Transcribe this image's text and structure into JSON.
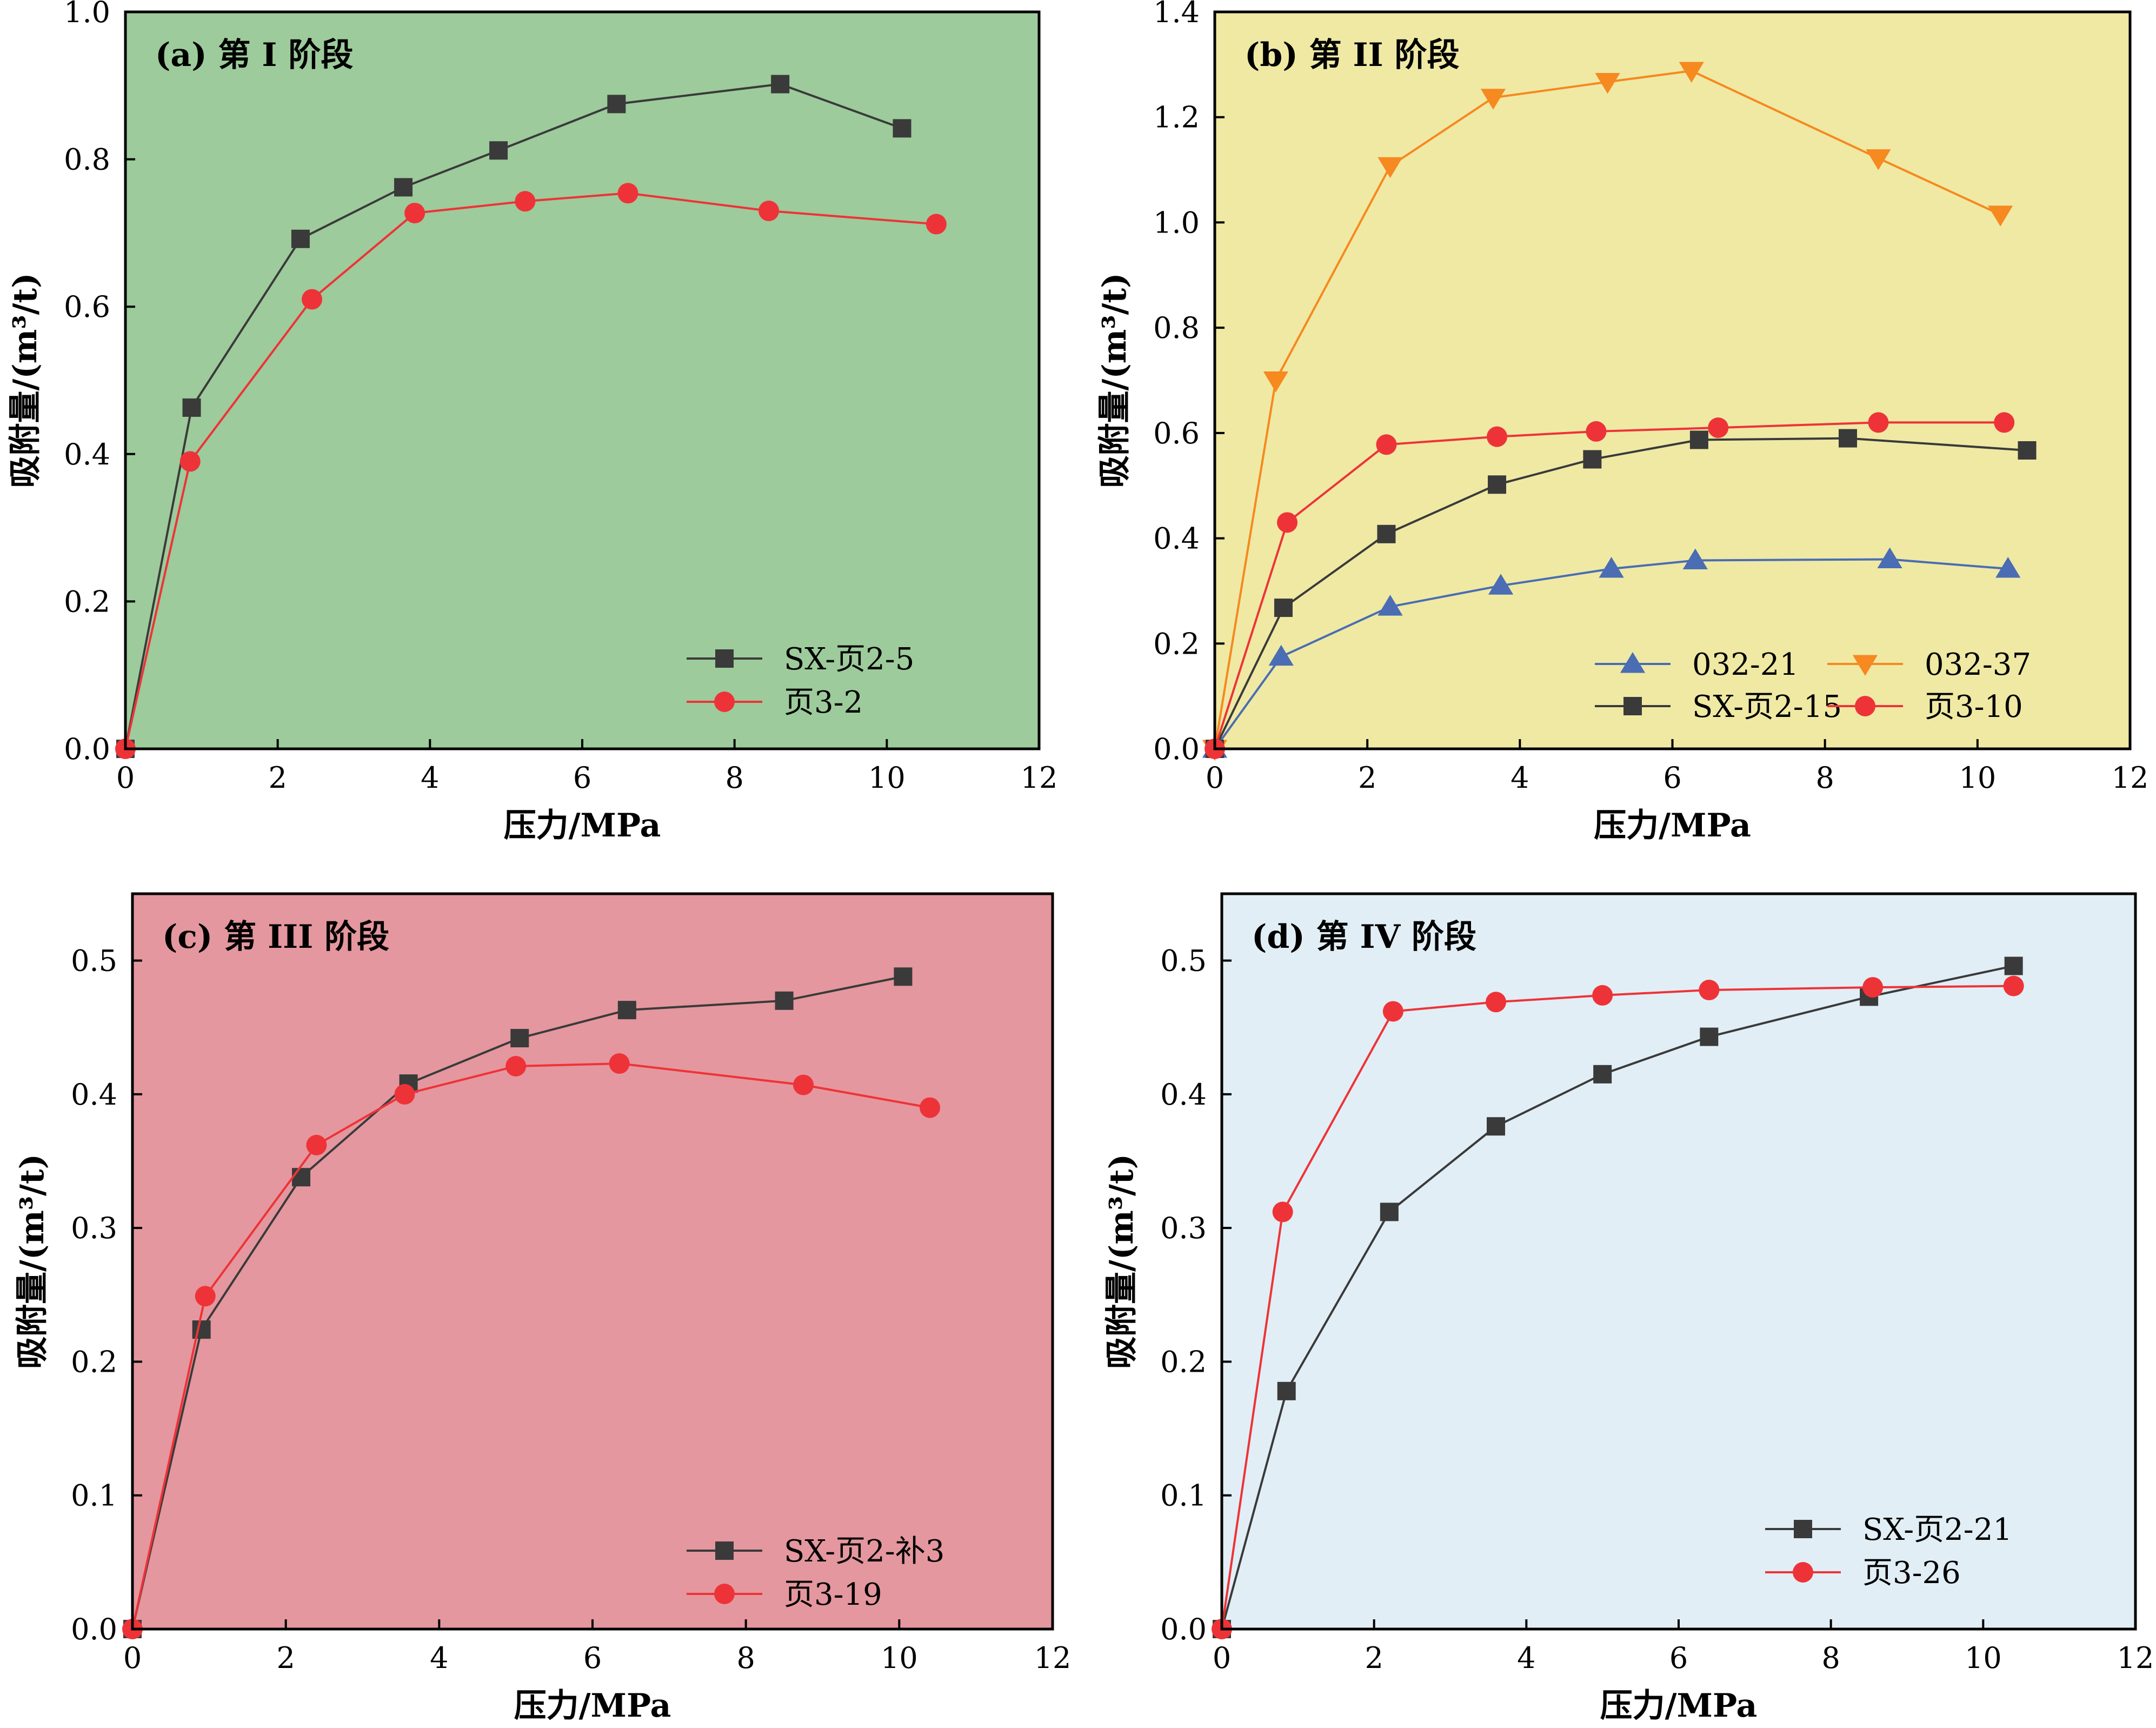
{
  "chart_data": [
    {
      "type": "line",
      "title": "(a) 第 I 阶段",
      "xlabel": "压力/MPa",
      "ylabel": "吸附量/(m³/t)",
      "xlim": [
        0,
        12
      ],
      "ylim": [
        0,
        1.0
      ],
      "xticks": [
        "0",
        "2",
        "4",
        "6",
        "8",
        "10",
        "12"
      ],
      "yticks": [
        "0.0",
        "0.2",
        "0.4",
        "0.6",
        "0.8",
        "1.0"
      ],
      "background": "#9dcb9b",
      "legend_position": "lower-right",
      "series": [
        {
          "name": "SX-页2-5",
          "marker": "square",
          "color": "#3a3a3a",
          "x": [
            0,
            0.87,
            2.3,
            3.65,
            4.9,
            6.45,
            8.6,
            10.2
          ],
          "y": [
            0,
            0.463,
            0.692,
            0.762,
            0.812,
            0.875,
            0.902,
            0.842
          ]
        },
        {
          "name": "页3-2",
          "marker": "circle",
          "color": "#ee3338",
          "x": [
            0,
            0.85,
            2.45,
            3.8,
            5.25,
            6.6,
            8.45,
            10.65
          ],
          "y": [
            0,
            0.39,
            0.61,
            0.727,
            0.743,
            0.754,
            0.73,
            0.712
          ]
        }
      ]
    },
    {
      "type": "line",
      "title": "(b) 第 II 阶段",
      "xlabel": "压力/MPa",
      "ylabel": "吸附量/(m³/t)",
      "xlim": [
        0,
        12
      ],
      "ylim": [
        0,
        1.4
      ],
      "xticks": [
        "0",
        "2",
        "4",
        "6",
        "8",
        "10",
        "12"
      ],
      "yticks": [
        "0.0",
        "0.2",
        "0.4",
        "0.6",
        "0.8",
        "1.0",
        "1.2",
        "1.4"
      ],
      "background": "#efe9a4",
      "legend_position": "lower-right",
      "series": [
        {
          "name": "032-21",
          "marker": "triangle-up",
          "color": "#4a6db3",
          "x": [
            0,
            0.87,
            2.3,
            3.75,
            5.2,
            6.3,
            8.85,
            10.4
          ],
          "y": [
            0,
            0.175,
            0.27,
            0.31,
            0.342,
            0.358,
            0.36,
            0.342
          ]
        },
        {
          "name": "032-37",
          "marker": "triangle-down",
          "color": "#f6891f",
          "x": [
            0,
            0.8,
            2.3,
            3.65,
            5.15,
            6.25,
            8.7,
            10.3
          ],
          "y": [
            0,
            0.7,
            1.107,
            1.237,
            1.267,
            1.288,
            1.122,
            1.015
          ]
        },
        {
          "name": "SX-页2-15",
          "marker": "square",
          "color": "#3a3a3a",
          "x": [
            0,
            0.9,
            2.25,
            3.7,
            4.95,
            6.35,
            8.3,
            10.65
          ],
          "y": [
            0,
            0.268,
            0.408,
            0.502,
            0.55,
            0.587,
            0.59,
            0.567
          ]
        },
        {
          "name": "页3-10",
          "marker": "circle",
          "color": "#ee3338",
          "x": [
            0,
            0.95,
            2.25,
            3.7,
            5.0,
            6.6,
            8.7,
            10.35
          ],
          "y": [
            0,
            0.43,
            0.578,
            0.593,
            0.603,
            0.61,
            0.62,
            0.62
          ]
        }
      ]
    },
    {
      "type": "line",
      "title": "(c) 第 III 阶段",
      "xlabel": "压力/MPa",
      "ylabel": "吸附量/(m³/t)",
      "xlim": [
        0,
        12
      ],
      "ylim": [
        0,
        0.55
      ],
      "xticks": [
        "0",
        "2",
        "4",
        "6",
        "8",
        "10",
        "12"
      ],
      "yticks": [
        "0.0",
        "0.1",
        "0.2",
        "0.3",
        "0.4",
        "0.5"
      ],
      "background": "#e4979e",
      "legend_position": "lower-right",
      "series": [
        {
          "name": "SX-页2-补3",
          "marker": "square",
          "color": "#3a3a3a",
          "x": [
            0,
            0.9,
            2.2,
            3.6,
            5.05,
            6.45,
            8.5,
            10.05
          ],
          "y": [
            0,
            0.224,
            0.338,
            0.408,
            0.442,
            0.463,
            0.47,
            0.488
          ]
        },
        {
          "name": "页3-19",
          "marker": "circle",
          "color": "#ee3338",
          "x": [
            0,
            0.95,
            2.4,
            3.55,
            5.0,
            6.35,
            8.75,
            10.4
          ],
          "y": [
            0,
            0.249,
            0.362,
            0.4,
            0.421,
            0.423,
            0.407,
            0.39
          ]
        }
      ]
    },
    {
      "type": "line",
      "title": "(d) 第 IV 阶段",
      "xlabel": "压力/MPa",
      "ylabel": "吸附量/(m³/t)",
      "xlim": [
        0,
        12
      ],
      "ylim": [
        0,
        0.55
      ],
      "xticks": [
        "0",
        "2",
        "4",
        "6",
        "8",
        "10",
        "12"
      ],
      "yticks": [
        "0.0",
        "0.1",
        "0.2",
        "0.3",
        "0.4",
        "0.5"
      ],
      "background": "#e1eef5",
      "legend_position": "lower-right",
      "series": [
        {
          "name": "SX-页2-21",
          "marker": "square",
          "color": "#3a3a3a",
          "x": [
            0,
            0.85,
            2.2,
            3.6,
            5.0,
            6.4,
            8.5,
            10.4
          ],
          "y": [
            0,
            0.178,
            0.312,
            0.376,
            0.415,
            0.443,
            0.473,
            0.496
          ]
        },
        {
          "name": "页3-26",
          "marker": "circle",
          "color": "#ee3338",
          "x": [
            0,
            0.8,
            2.25,
            3.6,
            5.0,
            6.4,
            8.55,
            10.4
          ],
          "y": [
            0,
            0.312,
            0.462,
            0.469,
            0.474,
            0.478,
            0.48,
            0.481
          ]
        }
      ]
    }
  ]
}
